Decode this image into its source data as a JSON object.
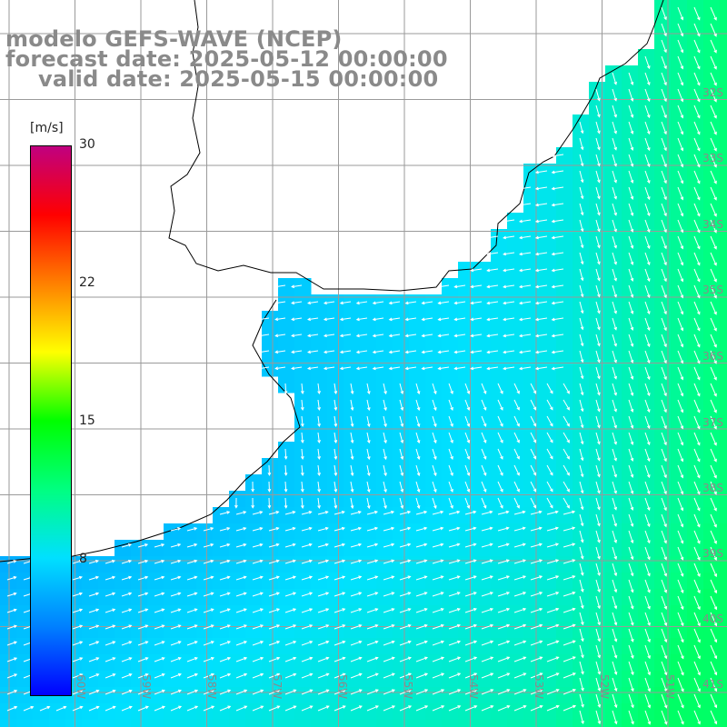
{
  "title": {
    "line1": "modelo GEFS-WAVE (NCEP)",
    "line2": "forecast date: 2025-05-12 00:00:00",
    "line3": "valid date: 2025-05-15 00:00:00"
  },
  "colorbar": {
    "unit": "[m/s]",
    "min": 0,
    "max": 30,
    "ticks": [
      "30",
      "22",
      "15",
      "8"
    ],
    "colors": [
      "#0000ff",
      "#0080ff",
      "#00e0ff",
      "#00ff80",
      "#00ff00",
      "#ffff00",
      "#ff8000",
      "#ff0000",
      "#c00080"
    ]
  },
  "lat_labels": [
    "32S",
    "33S",
    "34S",
    "35S",
    "36S",
    "37S",
    "38S",
    "39S",
    "40S",
    "41S"
  ],
  "lon_labels": [
    "60W",
    "59W",
    "58W",
    "57W",
    "56W",
    "55W",
    "54W",
    "53W",
    "52W",
    "51W"
  ],
  "map": {
    "ocean_color": "#1050ff",
    "land_color": "#ffffff",
    "grid_color": "#9a9a9a",
    "coast_color": "#000000",
    "arrow_color": "#ffffff"
  }
}
